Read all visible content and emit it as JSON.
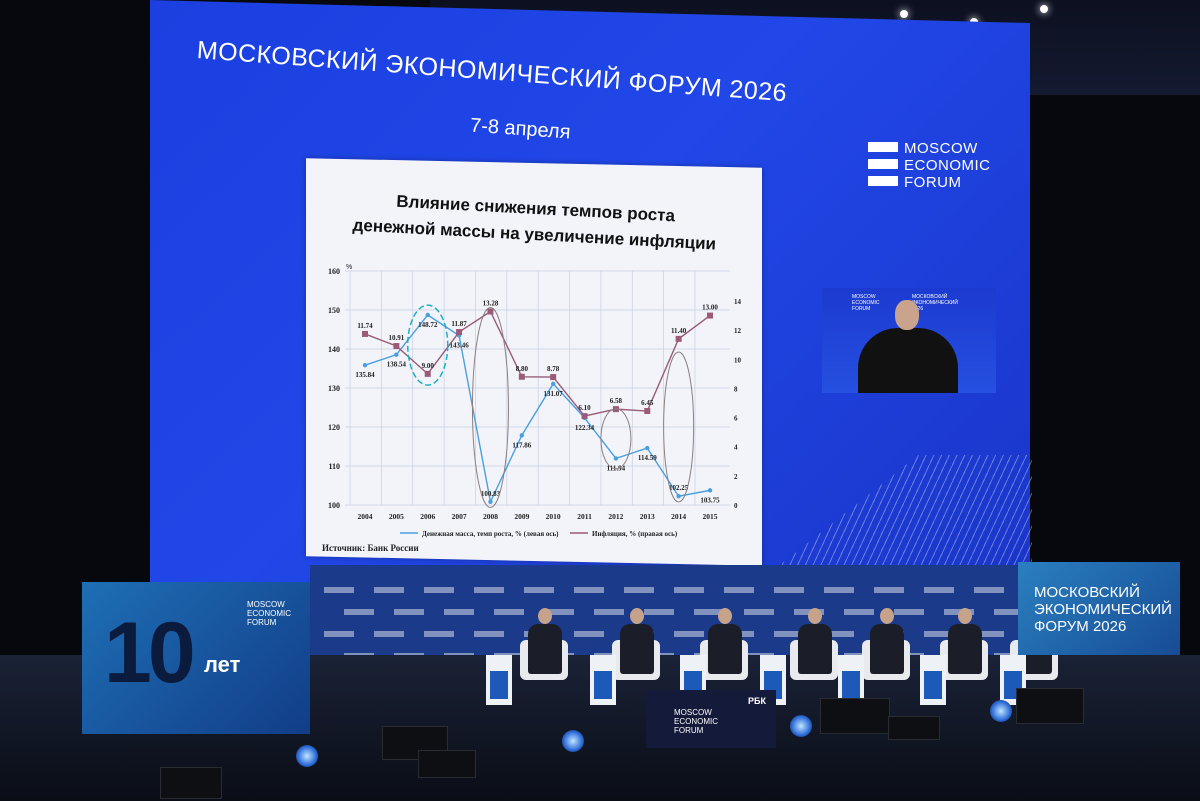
{
  "screen": {
    "title": "МОСКОВСКИЙ ЭКОНОМИЧЕСКИЙ ФОРУМ 2026",
    "date": "7-8 апреля",
    "logo_lines": [
      "MOSCOW",
      "ECONOMIC",
      "FORUM"
    ]
  },
  "slide": {
    "title_line1": "Влияние снижения темпов роста",
    "title_line2": "денежной массы на увеличение инфляции",
    "source": "Источник: Банк России"
  },
  "chart_data": {
    "type": "line",
    "title": "Влияние снижения темпов роста денежной массы на увеличение инфляции",
    "categories": [
      "2004",
      "2005",
      "2006",
      "2007",
      "2008",
      "2009",
      "2010",
      "2011",
      "2012",
      "2013",
      "2014",
      "2015"
    ],
    "left_axis": {
      "unit": "%",
      "ylim": [
        100,
        160
      ],
      "ticks": [
        100,
        110,
        120,
        130,
        140,
        150,
        160
      ]
    },
    "right_axis": {
      "ylim": [
        0,
        14
      ],
      "ticks": [
        0,
        2,
        4,
        6,
        8,
        10,
        12,
        14
      ]
    },
    "grid": true,
    "legend_position": "bottom",
    "series": [
      {
        "name": "Денежная масса, темп роста, % (левая ось)",
        "axis": "left",
        "color": "#4a9fe0",
        "marker": "diamond",
        "values": [
          135.84,
          138.54,
          148.72,
          143.46,
          100.83,
          117.86,
          131.07,
          122.34,
          111.94,
          114.59,
          102.25,
          103.75
        ]
      },
      {
        "name": "Инфляция, % (правая ось)",
        "axis": "right",
        "color": "#9a5a78",
        "marker": "square",
        "values": [
          11.74,
          10.91,
          9.0,
          11.87,
          13.28,
          8.8,
          8.78,
          6.1,
          6.58,
          6.45,
          11.4,
          13.0
        ]
      }
    ]
  },
  "inset": {
    "logo_lines": [
      "MOSCOW",
      "ECONOMIC",
      "FORUM"
    ],
    "center_text": "МОСКОВСКИЙ ЭКОНОМИЧЕСКИЙ 2026"
  },
  "banner_left": {
    "number": "10",
    "label": "лет",
    "logo_lines": [
      "MOSCOW",
      "ECONOMIC",
      "FORUM"
    ]
  },
  "banner_right": {
    "lines": [
      "МОСКОВСКИЙ",
      "ЭКОНОМИЧЕСКИЙ",
      "ФОРУМ 2026"
    ]
  },
  "podium": {
    "logo_lines": [
      "MOSCOW",
      "ECONOMIC",
      "FORUM"
    ],
    "sponsor": "РБК"
  },
  "colors": {
    "screen_blue": "#2147e8",
    "stage_blue": "#1b3a8a",
    "background": "#07080d"
  }
}
